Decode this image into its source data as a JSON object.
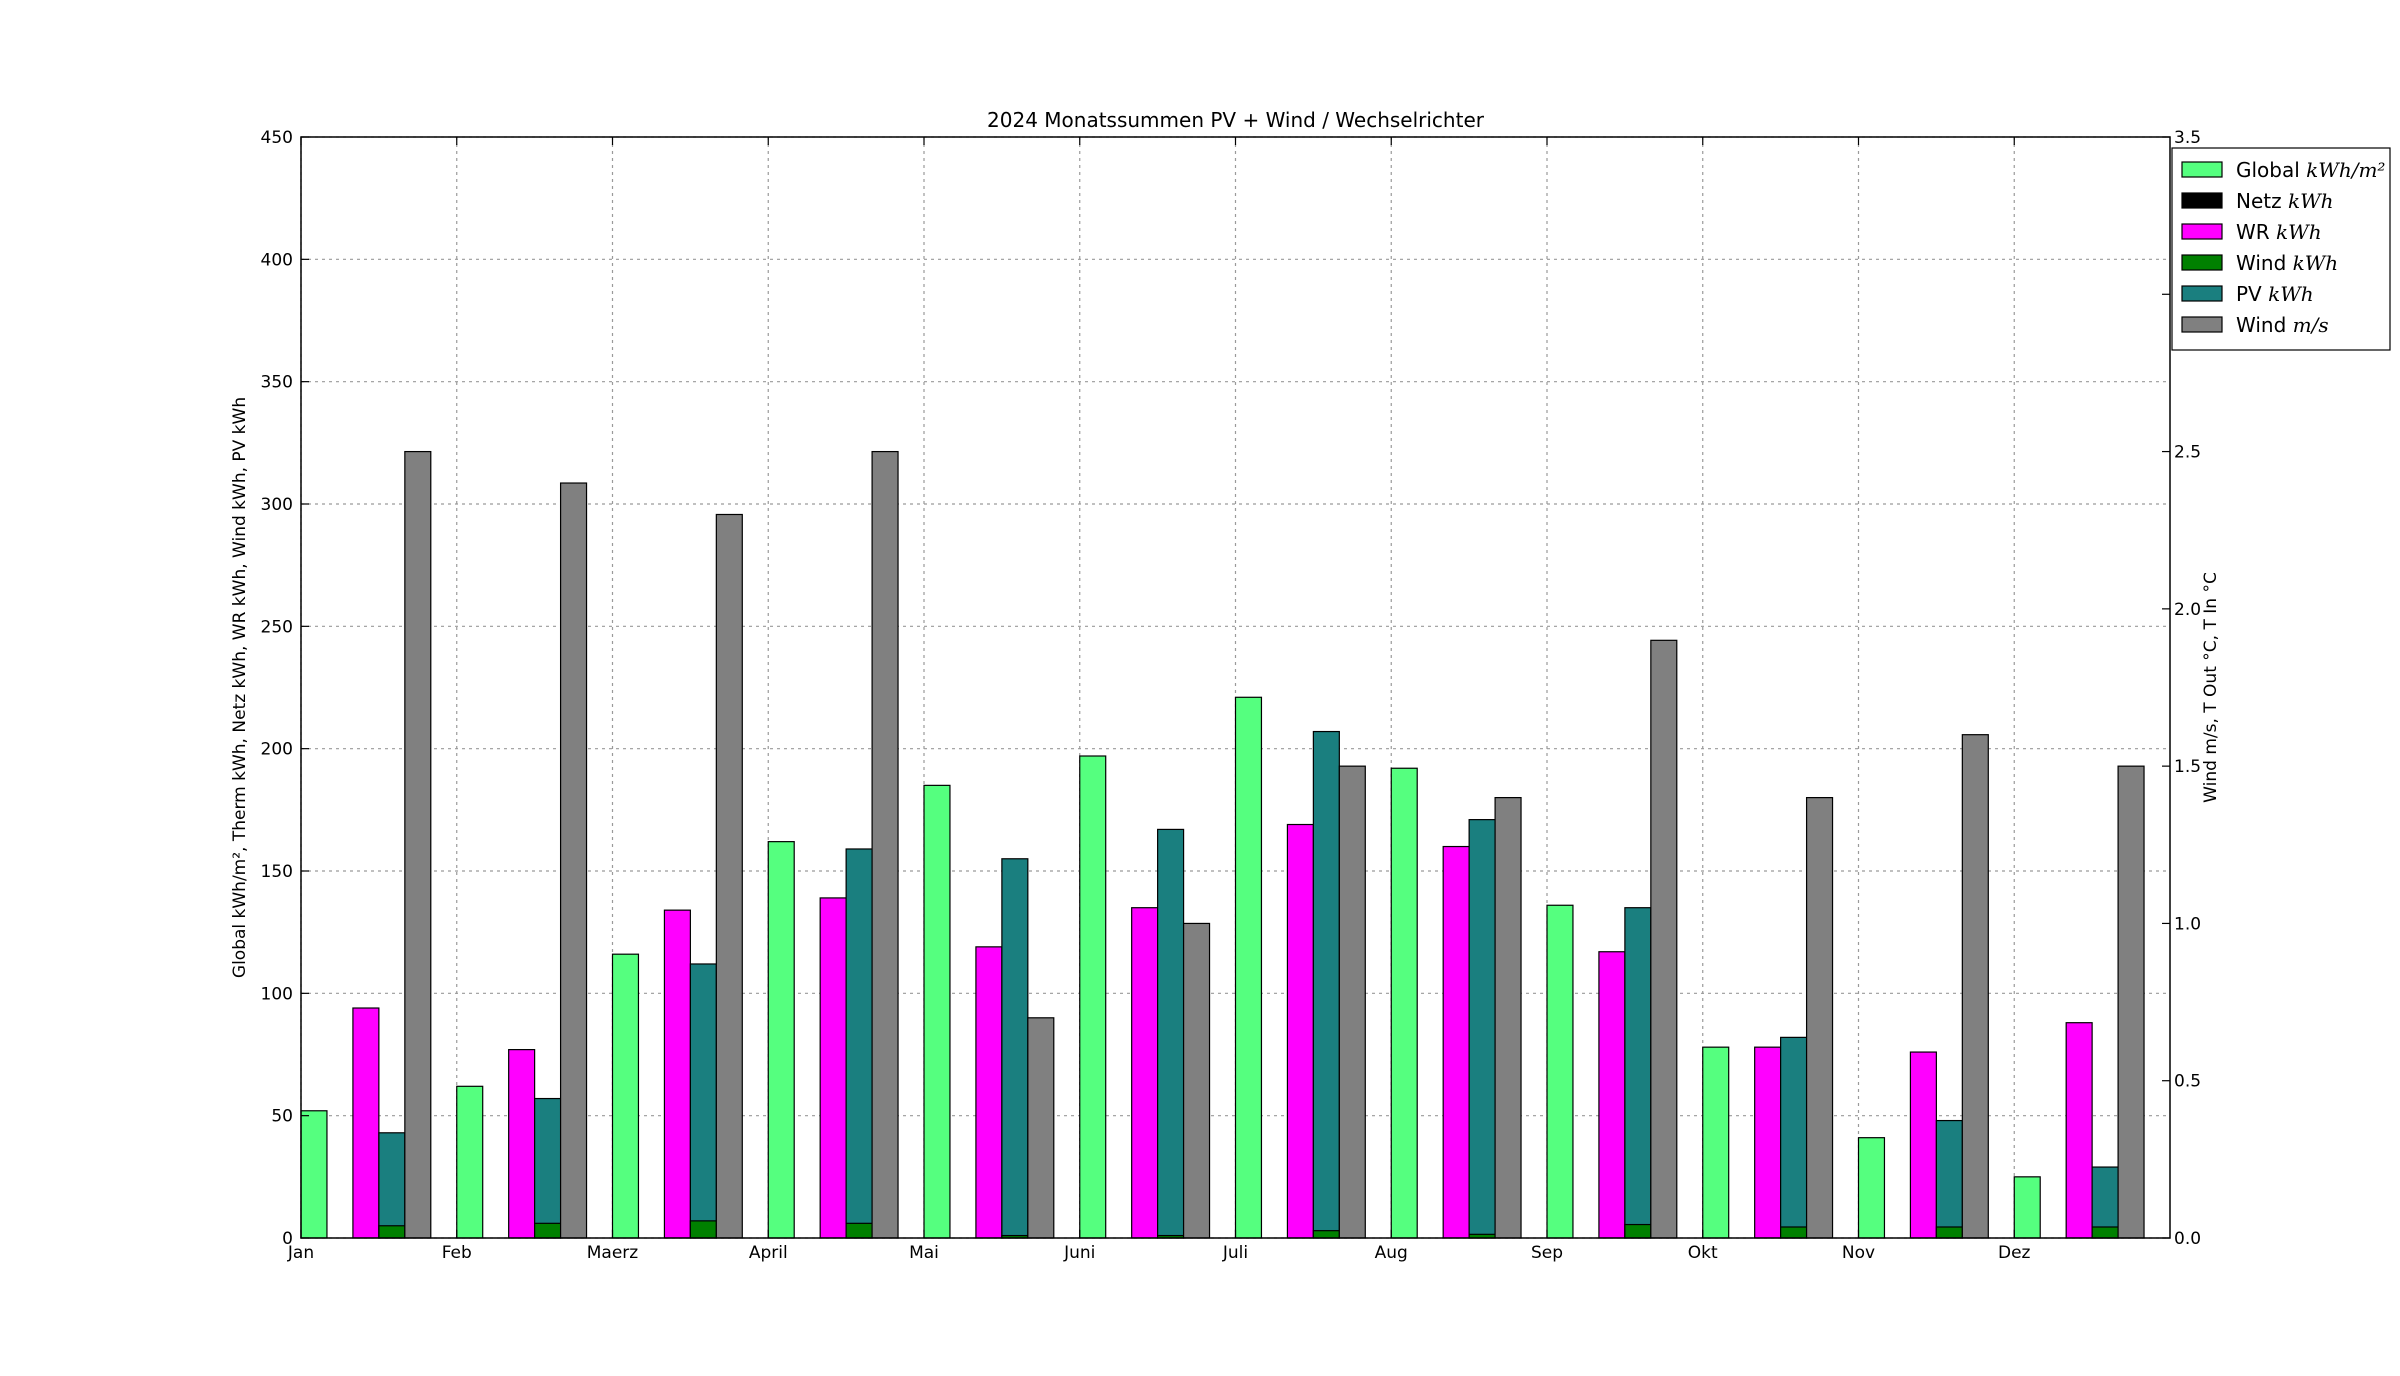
{
  "chart_data": {
    "type": "bar",
    "title": "2024 Monatssummen PV + Wind / Wechselrichter",
    "ylabel_left": "Global kWh/m², Therm kWh, Netz kWh, WR kWh, Wind kWh, PV kWh",
    "ylabel_right": "Wind m/s, T Out °C, T In °C",
    "categories": [
      "Jan",
      "Feb",
      "Maerz",
      "April",
      "Mai",
      "Juni",
      "Juli",
      "Aug",
      "Sep",
      "Okt",
      "Nov",
      "Dez"
    ],
    "ylim_left": [
      0,
      450
    ],
    "yticks_left": [
      0,
      50,
      100,
      150,
      200,
      250,
      300,
      350,
      400,
      450
    ],
    "ylim_right": [
      0,
      3.5
    ],
    "yticks_right": [
      "0.0",
      "0.5",
      "1.0",
      "1.5",
      "2.0",
      "2.5",
      "3.0",
      "3.5"
    ],
    "grid": true,
    "legend_position": "outside top-right",
    "series": [
      {
        "name": "Global kWh/m²",
        "axis": "left",
        "color": "#55ff7f",
        "values": [
          52,
          62,
          116,
          162,
          185,
          197,
          221,
          192,
          136,
          78,
          41,
          25
        ]
      },
      {
        "name": "Netz kWh",
        "axis": "left",
        "color": "#000000",
        "values": [
          0,
          0,
          0,
          0,
          0,
          0,
          0,
          0,
          0,
          0,
          0,
          0
        ]
      },
      {
        "name": "WR kWh",
        "axis": "left",
        "color": "#ff00ff",
        "values": [
          94,
          77,
          134,
          139,
          119,
          135,
          169,
          160,
          117,
          78,
          76,
          88
        ]
      },
      {
        "name": "Wind kWh",
        "axis": "left",
        "color": "#008000",
        "values": [
          5,
          6,
          7,
          6,
          1,
          1,
          3,
          1.5,
          5.5,
          4.5,
          4.5,
          4.5
        ]
      },
      {
        "name": "PV kWh",
        "axis": "left",
        "color": "#1a7f7f",
        "values": [
          43,
          57,
          112,
          159,
          155,
          167,
          207,
          171,
          135,
          82,
          48,
          29
        ]
      },
      {
        "name": "Wind m/s",
        "axis": "right",
        "color": "#808080",
        "values": [
          2.5,
          2.4,
          2.3,
          2.5,
          0.7,
          1.0,
          1.5,
          1.4,
          1.9,
          1.4,
          1.6,
          1.5
        ]
      }
    ]
  },
  "legend": {
    "entries": [
      {
        "label": "Global",
        "unit": "kWh/m²",
        "color": "#55ff7f"
      },
      {
        "label": "Netz",
        "unit": "kWh",
        "color": "#000000"
      },
      {
        "label": "WR",
        "unit": "kWh",
        "color": "#ff00ff"
      },
      {
        "label": "Wind",
        "unit": "kWh",
        "color": "#008000"
      },
      {
        "label": "PV",
        "unit": "kWh",
        "color": "#1a7f7f"
      },
      {
        "label": "Wind",
        "unit": "m/s",
        "color": "#808080"
      }
    ]
  }
}
